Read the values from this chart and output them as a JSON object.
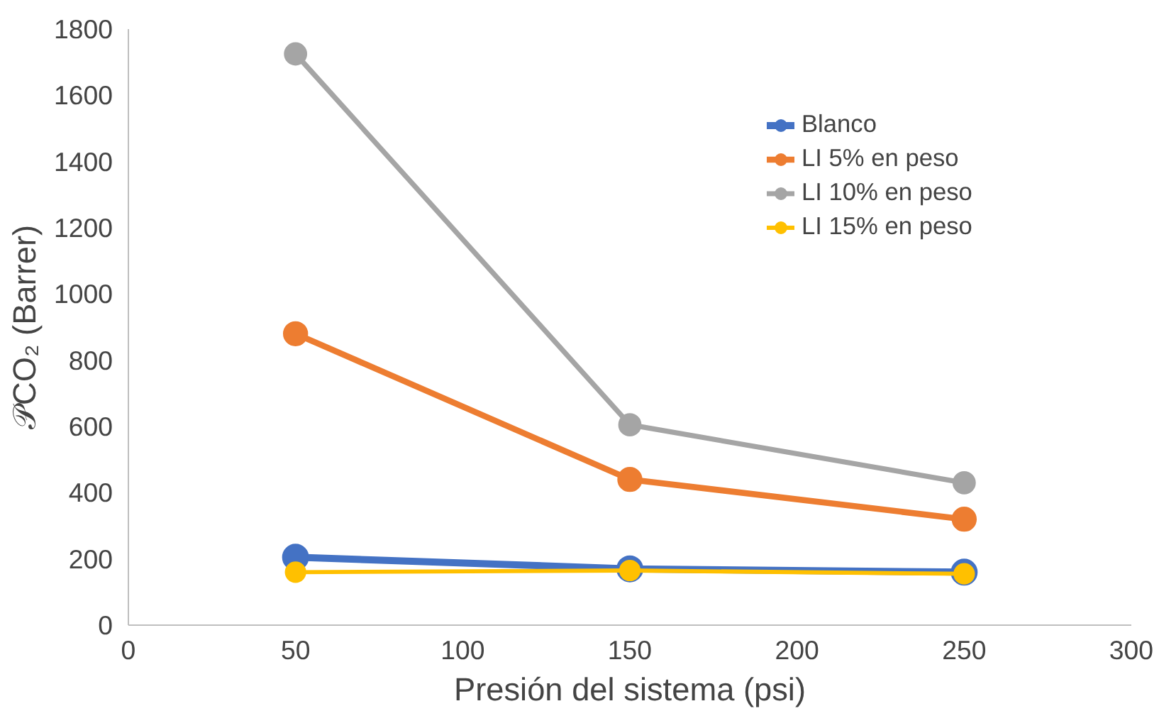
{
  "chart_data": {
    "type": "line",
    "xlabel": "Presión del sistema (psi)",
    "ylabel": "𝒫CO₂ (Barrer)",
    "x": [
      50,
      150,
      250
    ],
    "xlim": [
      0,
      300
    ],
    "xticks": [
      0,
      50,
      100,
      150,
      200,
      250,
      300
    ],
    "ylim": [
      0,
      1800
    ],
    "yticks": [
      0,
      200,
      400,
      600,
      800,
      1000,
      1200,
      1400,
      1600,
      1800
    ],
    "grid": false,
    "legend": "top right",
    "marker": "circle",
    "line_style": "solid",
    "series": [
      {
        "name": "Blanco",
        "color": "#4472c4",
        "values": [
          205,
          170,
          160
        ]
      },
      {
        "name": "LI 5% en peso",
        "color": "#ed7d31",
        "values": [
          880,
          440,
          320
        ]
      },
      {
        "name": "LI 10% en peso",
        "color": "#a5a5a5",
        "values": [
          1725,
          605,
          430
        ]
      },
      {
        "name": "LI 15% en peso",
        "color": "#ffc000",
        "values": [
          160,
          165,
          155
        ]
      }
    ]
  }
}
